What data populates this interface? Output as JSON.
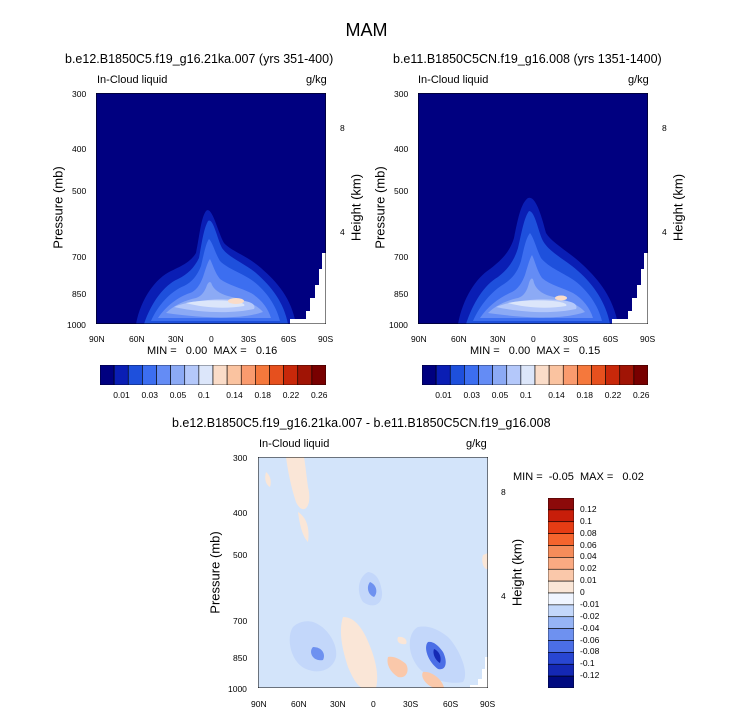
{
  "page": {
    "title": "MAM"
  },
  "chart_data": [
    {
      "type": "heatmap",
      "title": "b.e12.B1850C5.f19_g16.21ka.007 (yrs 351-400)",
      "left_label": "In-Cloud liquid",
      "right_label": "g/kg",
      "xlabel": "",
      "ylabel": "Pressure (mb)",
      "y2label": "Height (km)",
      "x_ticks": [
        "90N",
        "60N",
        "30N",
        "0",
        "30S",
        "60S",
        "90S"
      ],
      "y_ticks": [
        "300",
        "400",
        "500",
        "700",
        "850",
        "1000"
      ],
      "y2_ticks": [
        "8",
        "4"
      ],
      "stats": "MIN =   0.00  MAX =   0.16",
      "min": 0.0,
      "max": 0.16
    },
    {
      "type": "heatmap",
      "title": "b.e11.B1850C5CN.f19_g16.008 (yrs 1351-1400)",
      "left_label": "In-Cloud liquid",
      "right_label": "g/kg",
      "xlabel": "",
      "ylabel": "Pressure (mb)",
      "y2label": "Height (km)",
      "x_ticks": [
        "90N",
        "60N",
        "30N",
        "0",
        "30S",
        "60S",
        "90S"
      ],
      "y_ticks": [
        "300",
        "400",
        "500",
        "700",
        "850",
        "1000"
      ],
      "y2_ticks": [
        "8",
        "4"
      ],
      "stats": "MIN =   0.00  MAX =   0.15",
      "min": 0.0,
      "max": 0.15
    },
    {
      "type": "heatmap",
      "title": "b.e12.B1850C5.f19_g16.21ka.007 - b.e11.B1850C5CN.f19_g16.008",
      "left_label": "In-Cloud liquid",
      "right_label": "g/kg",
      "xlabel": "",
      "ylabel": "Pressure (mb)",
      "y2label": "Height (km)",
      "x_ticks": [
        "90N",
        "60N",
        "30N",
        "0",
        "30S",
        "60S",
        "90S"
      ],
      "y_ticks": [
        "300",
        "400",
        "500",
        "700",
        "850",
        "1000"
      ],
      "y2_ticks": [
        "8",
        "4"
      ],
      "stats": "MIN =  -0.05  MAX =   0.02",
      "min": -0.05,
      "max": 0.02
    }
  ],
  "colorbar_top": {
    "labels": [
      "0.01",
      "0.03",
      "0.05",
      "0.1",
      "0.14",
      "0.18",
      "0.22",
      "0.26"
    ],
    "colors": [
      "#000080",
      "#0a1eb4",
      "#1e50dc",
      "#3c6ef0",
      "#648cf5",
      "#8caaf5",
      "#b4c8fa",
      "#dce6fa",
      "#fadcc8",
      "#fac3a0",
      "#fa9b6e",
      "#f5783c",
      "#e6501e",
      "#c8280a",
      "#a01405",
      "#780000"
    ]
  },
  "colorbar_diff": {
    "labels": [
      "0.12",
      "0.1",
      "0.08",
      "0.06",
      "0.04",
      "0.02",
      "0.01",
      "0",
      "-0.01",
      "-0.02",
      "-0.04",
      "-0.06",
      "-0.08",
      "-0.1",
      "-0.12"
    ],
    "colors": [
      "#8c0a0a",
      "#c81e0a",
      "#e63c14",
      "#f5642d",
      "#f58c5a",
      "#faaa82",
      "#fac8aa",
      "#fae6d7",
      "#f0f5ff",
      "#c3d7fa",
      "#96b4f5",
      "#6e91f0",
      "#4b6ee6",
      "#2846d2",
      "#1428b4",
      "#000a80"
    ]
  },
  "field_colors": {
    "background": "#000080",
    "diff_background": "#d3e4fa"
  }
}
